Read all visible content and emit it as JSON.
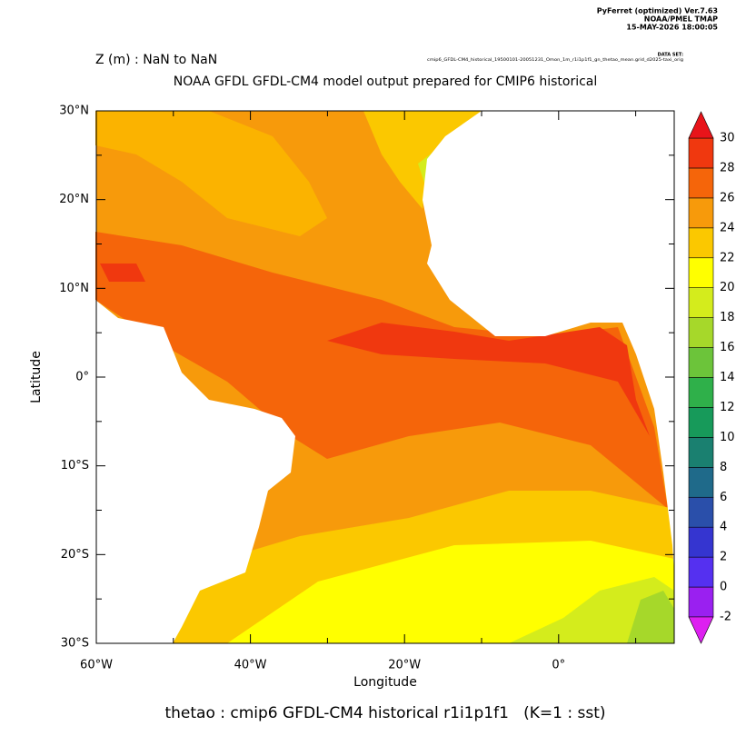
{
  "chart_data": {
    "type": "map",
    "header": [
      "PyFerret (optimized) Ver.7.63",
      "NOAA/PMEL TMAP",
      "15-MAY-2026 18:00:05"
    ],
    "dataset_label": "DATA SET:",
    "dataset": "cmip6_GFDL-CM4_historical_19500101-20051231_Omon_1m_r1i1p1f1_gn_thetao_mean.grid_d2025-taxi_orig",
    "subtitle": "Z (m) : NaN to NaN",
    "title": "NOAA GFDL GFDL-CM4 model output prepared for CMIP6 historical",
    "xlabel": "Longitude",
    "ylabel": "Latitude",
    "caption": "thetao : cmip6 GFDL-CM4 historical r1i1p1f1   (K=1 : sst)",
    "xlim": [
      -60,
      15
    ],
    "ylim": [
      -30,
      30
    ],
    "xticks": [
      {
        "value": -60,
        "label": "60°W"
      },
      {
        "value": -40,
        "label": "40°W"
      },
      {
        "value": -20,
        "label": "20°W"
      },
      {
        "value": 0,
        "label": "0°"
      }
    ],
    "yticks": [
      {
        "value": 30,
        "label": "30°N"
      },
      {
        "value": 20,
        "label": "20°N"
      },
      {
        "value": 10,
        "label": "10°N"
      },
      {
        "value": 0,
        "label": "0°"
      },
      {
        "value": -10,
        "label": "10°S"
      },
      {
        "value": -20,
        "label": "20°S"
      },
      {
        "value": -30,
        "label": "30°S"
      }
    ],
    "colorbar": {
      "levels": [
        -2,
        0,
        2,
        4,
        6,
        8,
        10,
        12,
        14,
        16,
        18,
        20,
        22,
        24,
        26,
        28,
        30
      ],
      "colors": [
        "#dd20f0",
        "#9a20f0",
        "#5530f0",
        "#3535d0",
        "#2a4faa",
        "#1f6a8a",
        "#1a8070",
        "#179a5a",
        "#2fb04a",
        "#6cc43a",
        "#a6d82a",
        "#d4ec1c",
        "#ffff00",
        "#fbc800",
        "#f79a0b",
        "#f5650a",
        "#f0380f",
        "#e8141a"
      ]
    }
  }
}
